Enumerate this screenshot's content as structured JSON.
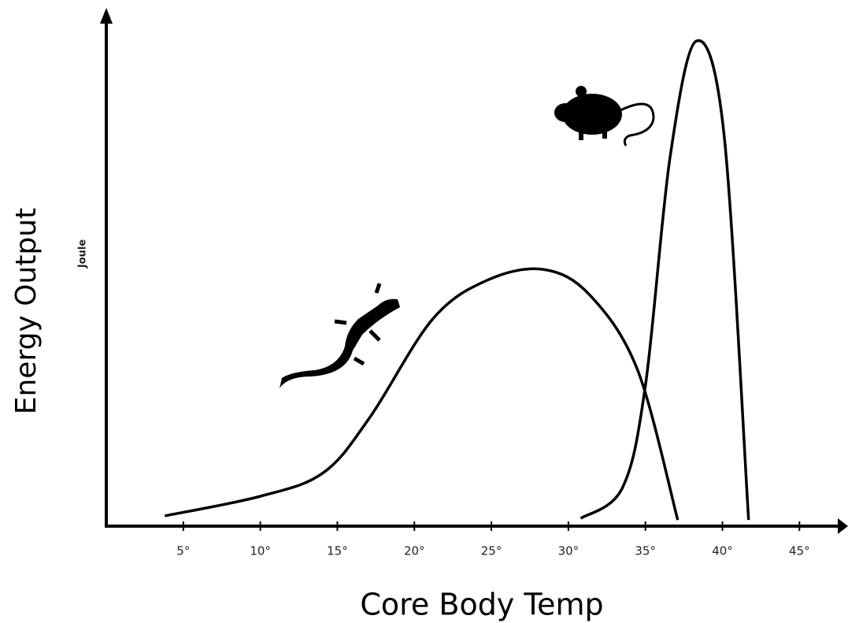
{
  "chart_data": {
    "type": "line",
    "x_label": "Core Body Temp",
    "y_label": "Energy Output",
    "annotation": "Joule",
    "xlim": [
      0,
      48
    ],
    "ylim": [
      0,
      100
    ],
    "xticks": [
      {
        "value": 5,
        "label": "5°"
      },
      {
        "value": 10,
        "label": "10°"
      },
      {
        "value": 15,
        "label": "15°"
      },
      {
        "value": 20,
        "label": "20°"
      },
      {
        "value": 25,
        "label": "25°"
      },
      {
        "value": 30,
        "label": "30°"
      },
      {
        "value": 35,
        "label": "35°"
      },
      {
        "value": 40,
        "label": "40°"
      },
      {
        "value": 45,
        "label": "45°"
      }
    ],
    "series": [
      {
        "color": "#000000",
        "x": [
          3.8,
          10,
          14.1,
          17.1,
          21.2,
          24.8,
          28.4,
          31.4,
          34.5,
          37.1
        ],
        "values": [
          2,
          5.8,
          10.4,
          21.1,
          40.3,
          47.9,
          49.9,
          44.9,
          30.3,
          1.2
        ]
      },
      {
        "color": "#000000",
        "x": [
          30.8,
          33.5,
          35,
          36.6,
          38.3,
          40.1,
          41.7
        ],
        "values": [
          1.5,
          7.4,
          27.3,
          71.7,
          94.3,
          76.3,
          1.2
        ]
      }
    ]
  }
}
